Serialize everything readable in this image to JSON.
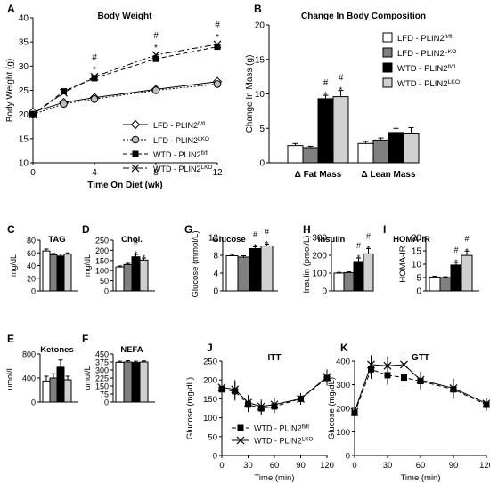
{
  "panels": {
    "A": {
      "letter": "A",
      "title": "Body Weight",
      "xlabel": "Time On Diet (wk)",
      "ylabel": "Body Weight (g)",
      "yticks": [
        10,
        15,
        20,
        25,
        30,
        35,
        40
      ],
      "xticks": [
        0,
        4,
        8,
        12
      ]
    },
    "B": {
      "letter": "B",
      "title": "Change In Body Composition",
      "ylabel": "Change In Mass (g)",
      "yticks": [
        0,
        5,
        10,
        15,
        20
      ]
    },
    "C": {
      "letter": "C",
      "title": "TAG",
      "ylabel": "mg/dL",
      "yticks": [
        0,
        20,
        40,
        60,
        80
      ]
    },
    "D": {
      "letter": "D",
      "title": "Chol.",
      "ylabel": "mg/dL",
      "yticks": [
        0,
        50,
        100,
        150,
        200,
        250
      ]
    },
    "E": {
      "letter": "E",
      "title": "Ketones",
      "ylabel": "umol/L",
      "yticks": [
        0,
        400,
        800
      ]
    },
    "F": {
      "letter": "F",
      "title": "NEFA",
      "ylabel": "umol/L",
      "yticks": [
        0,
        75,
        150,
        225,
        300,
        375,
        450
      ]
    },
    "G": {
      "letter": "G",
      "title": "Glucose",
      "ylabel": "Glucose (mmol/L)",
      "yticks": [
        0,
        4,
        8,
        12
      ]
    },
    "H": {
      "letter": "H",
      "title": "Insulin",
      "ylabel": "Insulin (pmol/L)",
      "yticks": [
        0,
        100,
        200,
        300
      ]
    },
    "I": {
      "letter": "I",
      "title": "HOMA-IR",
      "ylabel": "HOMA-IR",
      "yticks": [
        0,
        5,
        10,
        15,
        20
      ]
    },
    "J": {
      "letter": "J",
      "title": "ITT",
      "xlabel": "Time (min)",
      "ylabel": "Glucose (mg/dL)",
      "yticks": [
        0,
        50,
        100,
        150,
        200,
        250
      ],
      "xticks": [
        0,
        30,
        60,
        90,
        120
      ]
    },
    "K": {
      "letter": "K",
      "title": "GTT",
      "xlabel": "Time (min)",
      "ylabel": "Glucose (mg/dL)",
      "yticks": [
        0,
        100,
        200,
        300,
        400
      ],
      "xticks": [
        0,
        30,
        60,
        90,
        120
      ]
    }
  },
  "legend_groups": [
    {
      "base": "LFD - PLIN2",
      "sup": "fl/fl",
      "fill": "#ffffff"
    },
    {
      "base": "LFD - PLIN2",
      "sup": "LKO",
      "fill": "#808080"
    },
    {
      "base": "WTD - PLIN2",
      "sup": "fl/fl",
      "fill": "#000000"
    },
    {
      "base": "WTD - PLIN2",
      "sup": "LKO",
      "fill": "#d0d0d0"
    }
  ],
  "legend_wtd": [
    {
      "base": "WTD - PLIN2",
      "sup": "fl/fl"
    },
    {
      "base": "WTD - PLIN2",
      "sup": "LKO"
    }
  ],
  "markers": {
    "star": "*",
    "hash": "#"
  },
  "chart_data": [
    {
      "panel": "A",
      "type": "line",
      "title": "Body Weight",
      "xlabel": "Time On Diet (wk)",
      "ylabel": "Body Weight (g)",
      "xlim": [
        0,
        12
      ],
      "ylim": [
        10,
        40
      ],
      "series": [
        {
          "name": "LFD - PLIN2fl/fl",
          "marker": "diamond",
          "dash": "solid",
          "x": [
            0,
            2,
            4,
            8,
            12
          ],
          "y": [
            20.5,
            22.5,
            23.5,
            25.2,
            26.8
          ]
        },
        {
          "name": "LFD - PLIN2LKO",
          "marker": "circle",
          "dash": "dotted",
          "x": [
            0,
            2,
            4,
            8,
            12
          ],
          "y": [
            20.0,
            22.2,
            23.2,
            25.0,
            26.3
          ]
        },
        {
          "name": "WTD - PLIN2fl/fl",
          "marker": "square",
          "dash": "dashed",
          "x": [
            0,
            2,
            4,
            8,
            12
          ],
          "y": [
            20.0,
            24.8,
            27.5,
            31.5,
            34.0
          ]
        },
        {
          "name": "WTD - PLIN2LKO",
          "marker": "x",
          "dash": "dashdot",
          "x": [
            0,
            2,
            4,
            8,
            12
          ],
          "y": [
            20.0,
            24.5,
            27.8,
            32.3,
            34.5
          ]
        }
      ],
      "annotations": [
        {
          "x": 4,
          "marks": [
            "#",
            "*"
          ]
        },
        {
          "x": 8,
          "marks": [
            "#",
            "*"
          ]
        },
        {
          "x": 12,
          "marks": [
            "#",
            "*"
          ]
        }
      ]
    },
    {
      "panel": "B",
      "type": "bar",
      "title": "Change In Body Composition",
      "ylabel": "Change In Mass (g)",
      "ylim": [
        0,
        20
      ],
      "categories": [
        "Δ Fat Mass",
        "Δ Lean Mass"
      ],
      "series": [
        {
          "name": "LFD - PLIN2fl/fl",
          "values": [
            2.5,
            2.8
          ],
          "errors": [
            0.3,
            0.3
          ]
        },
        {
          "name": "LFD - PLIN2LKO",
          "values": [
            2.2,
            3.3
          ],
          "errors": [
            0.2,
            0.3
          ]
        },
        {
          "name": "WTD - PLIN2fl/fl",
          "values": [
            9.3,
            4.4
          ],
          "errors": [
            0.5,
            0.6
          ]
        },
        {
          "name": "WTD - PLIN2LKO",
          "values": [
            9.6,
            4.2
          ],
          "errors": [
            0.9,
            0.9
          ]
        }
      ],
      "annotations": [
        {
          "category": 0,
          "series": 2,
          "marks": [
            "#",
            "*"
          ]
        },
        {
          "category": 0,
          "series": 3,
          "marks": [
            "#",
            "*"
          ]
        }
      ]
    },
    {
      "panel": "C",
      "type": "bar",
      "title": "TAG",
      "ylabel": "mg/dL",
      "ylim": [
        0,
        80
      ],
      "values": [
        63,
        57,
        55,
        58
      ],
      "errors": [
        3,
        2,
        3,
        2
      ],
      "annotations": []
    },
    {
      "panel": "D",
      "type": "bar",
      "title": "Chol.",
      "ylabel": "mg/dL",
      "ylim": [
        0,
        250
      ],
      "values": [
        118,
        130,
        168,
        152
      ],
      "errors": [
        5,
        6,
        12,
        10
      ],
      "annotations": [
        {
          "bar": 2,
          "marks": [
            "#",
            "*"
          ]
        },
        {
          "bar": 3,
          "marks": [
            "*"
          ]
        }
      ]
    },
    {
      "panel": "E",
      "type": "bar",
      "title": "Ketones",
      "ylabel": "umol/L",
      "ylim": [
        0,
        800
      ],
      "values": [
        350,
        400,
        580,
        370
      ],
      "errors": [
        80,
        70,
        120,
        60
      ],
      "annotations": []
    },
    {
      "panel": "F",
      "type": "bar",
      "title": "NEFA",
      "ylabel": "umol/L",
      "ylim": [
        0,
        450
      ],
      "values": [
        372,
        375,
        370,
        375
      ],
      "errors": [
        10,
        12,
        12,
        10
      ],
      "annotations": []
    },
    {
      "panel": "G",
      "type": "bar",
      "title": "Glucose",
      "ylabel": "Glucose (mmol/L)",
      "ylim": [
        0,
        12
      ],
      "values": [
        7.9,
        7.6,
        9.5,
        10.1
      ],
      "errors": [
        0.3,
        0.3,
        0.4,
        0.4
      ],
      "annotations": [
        {
          "bar": 2,
          "marks": [
            "#",
            "*"
          ]
        },
        {
          "bar": 3,
          "marks": [
            "#",
            "*"
          ]
        }
      ]
    },
    {
      "panel": "H",
      "type": "bar",
      "title": "Insulin",
      "ylabel": "Insulin (pmol/L)",
      "ylim": [
        0,
        300
      ],
      "values": [
        100,
        103,
        165,
        208
      ],
      "errors": [
        4,
        4,
        20,
        30
      ],
      "annotations": [
        {
          "bar": 2,
          "marks": [
            "#",
            "*"
          ]
        },
        {
          "bar": 3,
          "marks": [
            "#",
            "*"
          ]
        }
      ]
    },
    {
      "panel": "I",
      "type": "bar",
      "title": "HOMA-IR",
      "ylabel": "HOMA-IR",
      "ylim": [
        0,
        20
      ],
      "values": [
        5.2,
        5.0,
        9.7,
        13.3
      ],
      "errors": [
        0.3,
        0.3,
        1.0,
        1.6
      ],
      "annotations": [
        {
          "bar": 2,
          "marks": [
            "#",
            "*"
          ]
        },
        {
          "bar": 3,
          "marks": [
            "#",
            "*"
          ]
        }
      ]
    },
    {
      "panel": "J",
      "type": "line",
      "title": "ITT",
      "xlabel": "Time (min)",
      "ylabel": "Glucose (mg/dL)",
      "xlim": [
        0,
        120
      ],
      "ylim": [
        0,
        250
      ],
      "series": [
        {
          "name": "WTD - PLIN2fl/fl",
          "marker": "square",
          "dash": "dashed",
          "x": [
            0,
            15,
            30,
            45,
            60,
            90,
            120
          ],
          "y": [
            175,
            170,
            135,
            125,
            130,
            150,
            205
          ],
          "errors": [
            25,
            25,
            20,
            18,
            18,
            15,
            20
          ]
        },
        {
          "name": "WTD - PLIN2LKO",
          "marker": "x",
          "dash": "solid",
          "x": [
            0,
            15,
            30,
            45,
            60,
            90,
            120
          ],
          "y": [
            180,
            175,
            140,
            130,
            135,
            150,
            208
          ],
          "errors": [
            25,
            25,
            20,
            18,
            18,
            15,
            20
          ]
        }
      ]
    },
    {
      "panel": "K",
      "type": "line",
      "title": "GTT",
      "xlabel": "Time (min)",
      "ylabel": "Glucose (mg/dL)",
      "xlim": [
        0,
        120
      ],
      "ylim": [
        0,
        400
      ],
      "series": [
        {
          "name": "WTD - PLIN2fl/fl",
          "marker": "square",
          "dash": "dashed",
          "x": [
            0,
            15,
            30,
            45,
            60,
            90,
            120
          ],
          "y": [
            180,
            365,
            340,
            330,
            315,
            280,
            215
          ],
          "errors": [
            20,
            40,
            40,
            40,
            35,
            40,
            25
          ]
        },
        {
          "name": "WTD - PLIN2LKO",
          "marker": "x",
          "dash": "solid",
          "x": [
            0,
            15,
            30,
            45,
            60,
            90,
            120
          ],
          "y": [
            185,
            385,
            380,
            385,
            320,
            285,
            220
          ],
          "errors": [
            20,
            40,
            40,
            40,
            35,
            40,
            25
          ]
        }
      ]
    }
  ]
}
